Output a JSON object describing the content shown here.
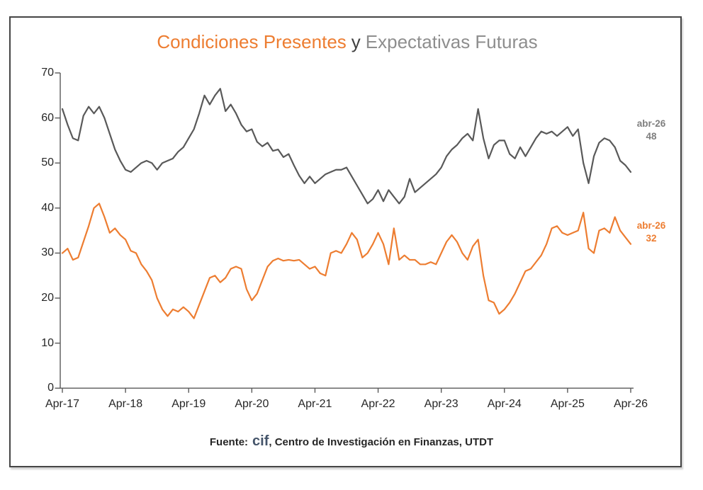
{
  "title": {
    "present": "Condiciones Presentes",
    "connector": "y",
    "future": "Expectativas Futuras"
  },
  "footer": {
    "prefix": "Fuente:",
    "brand": "cif",
    "suffix": ", Centro de Investigación en Finanzas, UTDT"
  },
  "colors": {
    "present_line": "#ED7D31",
    "future_line": "#595959",
    "title_present": "#ED7D31",
    "title_future": "#8e8e8e",
    "axis": "#595959",
    "tick_label": "#262626",
    "brand_text": "#44546A",
    "frame_border": "#454545"
  },
  "chart_data": {
    "type": "line",
    "title": "Condiciones Presentes y Expectativas Futuras",
    "xlabel": "",
    "ylabel": "",
    "ylim": [
      0,
      70
    ],
    "y_ticks": [
      0,
      10,
      20,
      30,
      40,
      50,
      60,
      70
    ],
    "x_tick_labels": [
      "Apr-17",
      "Apr-18",
      "Apr-19",
      "Apr-20",
      "Apr-21",
      "Apr-22",
      "Apr-23",
      "Apr-24",
      "Apr-25",
      "Apr-26"
    ],
    "frequency": "monthly",
    "x_start": "Apr-2017",
    "x_end": "Apr-2026",
    "grid": false,
    "legend_position": "none (colored title acts as legend)",
    "series": [
      {
        "name": "Condiciones Presentes",
        "color": "#ED7D31",
        "end_label": {
          "date": "abr-26",
          "value": 32
        },
        "values": [
          30,
          31,
          28.5,
          29,
          32.5,
          36,
          40,
          41,
          38,
          34.5,
          35.5,
          34,
          33,
          30.5,
          30,
          27.5,
          26,
          24,
          20,
          17.5,
          16,
          17.5,
          17,
          18,
          17,
          15.5,
          18.5,
          21.5,
          24.5,
          25,
          23.5,
          24.5,
          26.5,
          27,
          26.5,
          22,
          19.5,
          21,
          24,
          27,
          28.3,
          28.8,
          28.3,
          28.5,
          28.3,
          28.5,
          27.5,
          26.5,
          27,
          25.5,
          25,
          30,
          30.5,
          30,
          32,
          34.5,
          33,
          29,
          30,
          32,
          34.5,
          32,
          27.5,
          35.5,
          28.5,
          29.5,
          28.5,
          28.5,
          27.5,
          27.5,
          28,
          27.5,
          30,
          32.5,
          34,
          32.5,
          30,
          28.5,
          31.5,
          33,
          25,
          19.5,
          19,
          16.5,
          17.5,
          19,
          21,
          23.5,
          26,
          26.5,
          28,
          29.5,
          32,
          35.5,
          36,
          34.5,
          34,
          34.5,
          35,
          39,
          31,
          30,
          35,
          35.5,
          34.5,
          38,
          35,
          33.5,
          32
        ]
      },
      {
        "name": "Expectativas Futuras",
        "color": "#595959",
        "end_label": {
          "date": "abr-26",
          "value": 48
        },
        "values": [
          62,
          58.5,
          55.5,
          55,
          60.5,
          62.5,
          61,
          62.5,
          60,
          56.5,
          53,
          50.5,
          48.5,
          48,
          49,
          50,
          50.5,
          50,
          48.5,
          50,
          50.5,
          51,
          52.5,
          53.5,
          55.5,
          57.5,
          61,
          65,
          63,
          65,
          66.5,
          61.5,
          63,
          61,
          58.5,
          57,
          57.5,
          54.7,
          53.7,
          54.5,
          52.7,
          53,
          51.3,
          52,
          49.5,
          47.2,
          45.5,
          47,
          45.5,
          46.5,
          47.5,
          48,
          48.5,
          48.5,
          49,
          47,
          45,
          43,
          41,
          42,
          44,
          41.5,
          44,
          42.5,
          41,
          42.5,
          46.5,
          43.5,
          44.5,
          45.5,
          46.5,
          47.5,
          49,
          51.5,
          53,
          54,
          55.5,
          56.5,
          55,
          62,
          55.5,
          51,
          54,
          55,
          55,
          52,
          51,
          53.5,
          51.5,
          53.5,
          55.5,
          57,
          56.5,
          57,
          56,
          57,
          58,
          56,
          57.5,
          50,
          45.5,
          51.5,
          54.5,
          55.5,
          55,
          53.5,
          50.5,
          49.5,
          48
        ]
      }
    ]
  }
}
